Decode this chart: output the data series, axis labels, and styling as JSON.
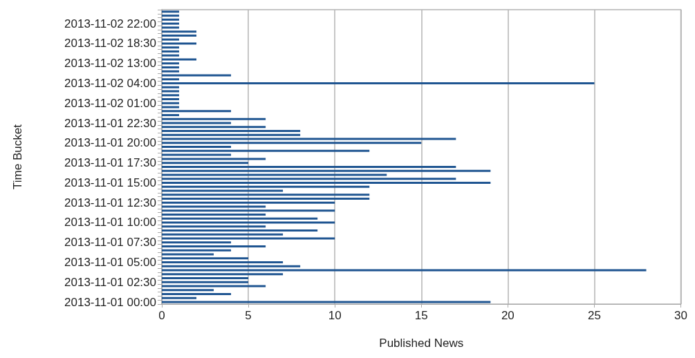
{
  "chart_data": {
    "type": "bar",
    "orientation": "horizontal",
    "xlabel": "Published News",
    "ylabel": "Time Bucket",
    "categories": [
      null,
      null,
      null,
      "2013-11-02 22:00",
      null,
      null,
      null,
      null,
      "2013-11-02 18:30",
      null,
      null,
      null,
      null,
      "2013-11-02 13:00",
      null,
      null,
      null,
      null,
      "2013-11-02 04:00",
      null,
      null,
      null,
      null,
      "2013-11-02 01:00",
      null,
      null,
      null,
      null,
      "2013-11-01 22:30",
      null,
      null,
      null,
      null,
      "2013-11-01 20:00",
      null,
      null,
      null,
      null,
      "2013-11-01 17:30",
      null,
      null,
      null,
      null,
      "2013-11-01 15:00",
      null,
      null,
      null,
      null,
      "2013-11-01 12:30",
      null,
      null,
      null,
      null,
      "2013-11-01 10:00",
      null,
      null,
      null,
      null,
      "2013-11-01 07:30",
      null,
      null,
      null,
      null,
      "2013-11-01 05:00",
      null,
      null,
      null,
      null,
      "2013-11-01 02:30",
      null,
      null,
      null,
      null,
      "2013-11-01 00:00"
    ],
    "values": [
      1,
      1,
      1,
      1,
      1,
      2,
      2,
      1,
      2,
      1,
      1,
      1,
      2,
      1,
      1,
      1,
      4,
      1,
      25,
      1,
      1,
      1,
      1,
      1,
      1,
      4,
      1,
      6,
      4,
      6,
      8,
      8,
      17,
      15,
      4,
      12,
      4,
      6,
      5,
      17,
      19,
      13,
      17,
      19,
      12,
      7,
      12,
      12,
      10,
      6,
      10,
      6,
      9,
      10,
      6,
      9,
      7,
      10,
      4,
      6,
      4,
      3,
      5,
      7,
      8,
      28,
      7,
      5,
      5,
      6,
      3,
      4,
      2,
      19
    ],
    "color": "#1f5591",
    "xlim": [
      0,
      30
    ],
    "xticks": [
      0,
      5,
      10,
      15,
      20,
      25,
      30
    ],
    "grid": "x"
  }
}
